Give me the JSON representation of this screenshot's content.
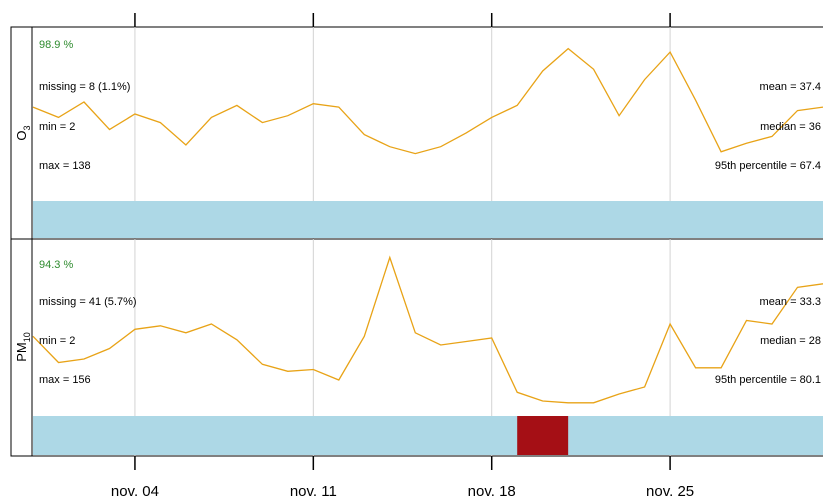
{
  "chart_data": {
    "type": "line",
    "xaxis": {
      "range": [
        "2013-10-31",
        "2013-12-01"
      ],
      "ticks": [
        {
          "date": "2013-11-04",
          "label": "nov. 04"
        },
        {
          "date": "2013-11-11",
          "label": "nov. 11"
        },
        {
          "date": "2013-11-18",
          "label": "nov. 18"
        },
        {
          "date": "2013-11-25",
          "label": "nov. 25"
        }
      ],
      "grid": true
    },
    "colors": {
      "line": "#e8a317",
      "availability": "#add8e6",
      "missing": "#a50f15",
      "percent_text": "#2e8b2e",
      "frame": "#000000",
      "grid": "#d3d3d3"
    },
    "panels": [
      {
        "name": "O3",
        "strip_main": "O",
        "strip_sub": "3",
        "percent": "98.9 %",
        "missing": "missing = 8 (1.1%)",
        "min": "min = 2",
        "max": "max = 138",
        "mean": "mean = 37.4",
        "median": "median = 36",
        "p95": "95th percentile = 67.4",
        "ylim": [
          0,
          100
        ],
        "x": [
          "2013-10-31",
          "2013-11-01",
          "2013-11-02",
          "2013-11-03",
          "2013-11-04",
          "2013-11-05",
          "2013-11-06",
          "2013-11-07",
          "2013-11-08",
          "2013-11-09",
          "2013-11-10",
          "2013-11-11",
          "2013-11-12",
          "2013-11-13",
          "2013-11-14",
          "2013-11-15",
          "2013-11-16",
          "2013-11-17",
          "2013-11-18",
          "2013-11-19",
          "2013-11-20",
          "2013-11-21",
          "2013-11-22",
          "2013-11-23",
          "2013-11-24",
          "2013-11-25",
          "2013-11-26",
          "2013-11-27",
          "2013-11-28",
          "2013-11-29",
          "2013-11-30",
          "2013-12-01"
        ],
        "values": [
          54,
          48,
          57,
          41,
          50,
          45,
          32,
          48,
          55,
          45,
          49,
          56,
          54,
          38,
          31,
          27,
          31,
          39,
          48,
          55,
          75,
          88,
          76,
          49,
          70,
          86,
          58,
          28,
          33,
          37,
          52,
          54
        ],
        "missing_periods": []
      },
      {
        "name": "PM10",
        "strip_main": "PM",
        "strip_sub": "10",
        "percent": "94.3 %",
        "missing": "missing = 41 (5.7%)",
        "min": "min = 2",
        "max": "max = 156",
        "mean": "mean = 33.3",
        "median": "median = 28",
        "p95": "95th percentile = 80.1",
        "ylim": [
          0,
          100
        ],
        "x": [
          "2013-10-31",
          "2013-11-01",
          "2013-11-02",
          "2013-11-03",
          "2013-11-04",
          "2013-11-05",
          "2013-11-06",
          "2013-11-07",
          "2013-11-08",
          "2013-11-09",
          "2013-11-10",
          "2013-11-11",
          "2013-11-12",
          "2013-11-13",
          "2013-11-14",
          "2013-11-15",
          "2013-11-16",
          "2013-11-17",
          "2013-11-18",
          "2013-11-19",
          "2013-11-20",
          "2013-11-21",
          "2013-11-22",
          "2013-11-23",
          "2013-11-24",
          "2013-11-25",
          "2013-11-26",
          "2013-11-27",
          "2013-11-28",
          "2013-11-29",
          "2013-11-30",
          "2013-12-01"
        ],
        "values": [
          45,
          30,
          32,
          38,
          49,
          51,
          47,
          52,
          43,
          29,
          25,
          26,
          20,
          45,
          90,
          47,
          40,
          42,
          44,
          13,
          8,
          7,
          7,
          12,
          16,
          52,
          27,
          27,
          54,
          52,
          73,
          75
        ],
        "missing_periods": [
          [
            "2013-11-19",
            "2013-11-20"
          ]
        ]
      }
    ]
  }
}
